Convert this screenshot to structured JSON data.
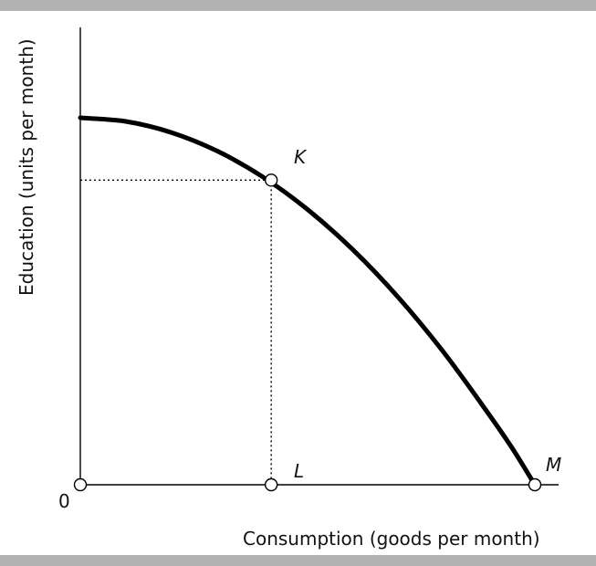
{
  "chart_data": {
    "type": "line",
    "title": "",
    "xlabel": "Consumption (goods per month)",
    "ylabel": "Education (units per month)",
    "origin_label": "0",
    "xlim": [
      0,
      10
    ],
    "ylim": [
      0,
      10
    ],
    "grid": false,
    "series": [
      {
        "x": [
          0,
          1,
          2,
          3,
          4,
          5,
          6,
          7,
          8,
          9,
          9.5,
          10
        ],
        "y": [
          10,
          9.9,
          9.6,
          9.1,
          8.4,
          7.5,
          6.4,
          5.1,
          3.6,
          1.9,
          1.0,
          0
        ]
      }
    ],
    "points": [
      {
        "label": "K",
        "x": 4.2,
        "y": 8.3
      },
      {
        "label": "L",
        "x": 4.2,
        "y": 0
      },
      {
        "label": "M",
        "x": 10,
        "y": 0
      },
      {
        "label": "",
        "x": 0,
        "y": 0
      }
    ],
    "guides": [
      {
        "from": [
          0,
          8.3
        ],
        "to": [
          4.2,
          8.3
        ]
      },
      {
        "from": [
          4.2,
          8.3
        ],
        "to": [
          4.2,
          0
        ]
      }
    ]
  }
}
